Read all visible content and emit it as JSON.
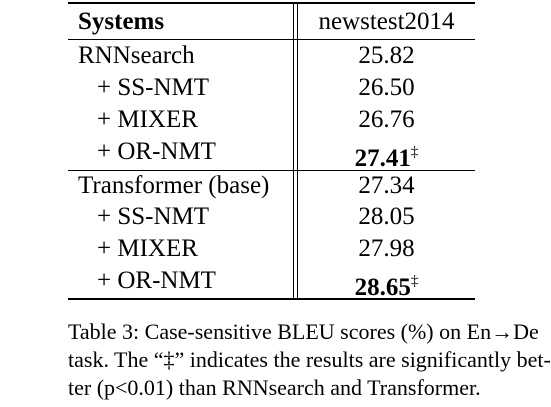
{
  "table": {
    "header": {
      "systems": "Systems",
      "metric": "newstest2014"
    },
    "groups": [
      {
        "base": {
          "name": "RNNsearch",
          "score": "25.82"
        },
        "rows": [
          {
            "name": "+ SS-NMT",
            "score": "26.50",
            "bold": false,
            "mark": ""
          },
          {
            "name": "+ MIXER",
            "score": "26.76",
            "bold": false,
            "mark": ""
          },
          {
            "name": "+ OR-NMT",
            "score": "27.41",
            "bold": true,
            "mark": "‡"
          }
        ]
      },
      {
        "base": {
          "name": "Transformer (base)",
          "score": "27.34"
        },
        "rows": [
          {
            "name": "+ SS-NMT",
            "score": "28.05",
            "bold": false,
            "mark": ""
          },
          {
            "name": "+ MIXER",
            "score": "27.98",
            "bold": false,
            "mark": ""
          },
          {
            "name": "+ OR-NMT",
            "score": "28.65",
            "bold": true,
            "mark": "‡"
          }
        ]
      }
    ]
  },
  "caption": {
    "line1": "Table 3: Case-sensitive BLEU scores (%) on En→De",
    "line2": "task. The “‡” indicates the results are significantly bet-",
    "line3": "ter (p<0.01) than RNNsearch and Transformer."
  }
}
